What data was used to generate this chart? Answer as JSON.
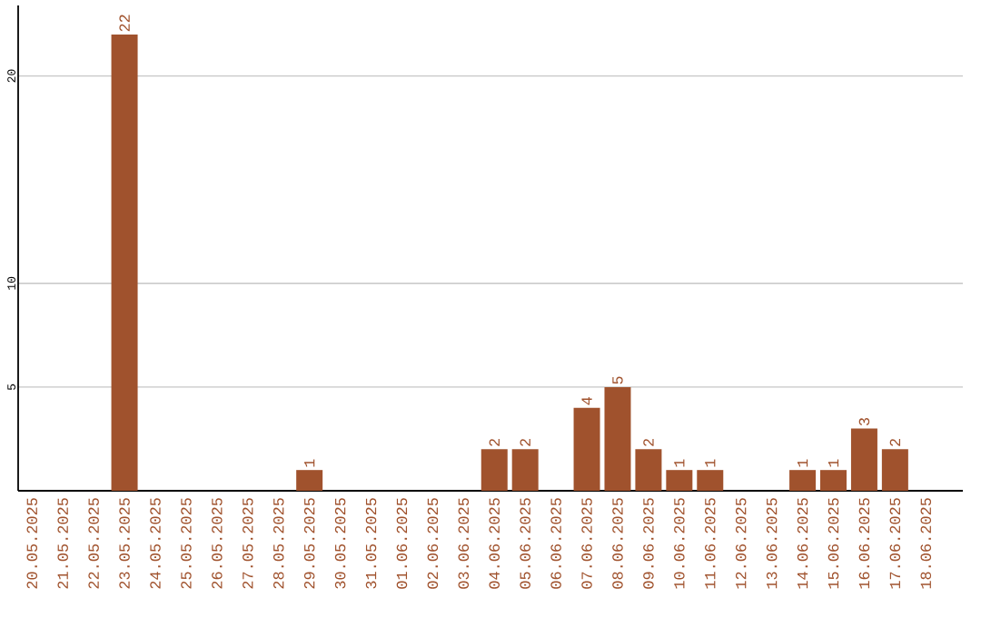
{
  "chart_data": {
    "type": "bar",
    "categories": [
      "20.05.2025",
      "21.05.2025",
      "22.05.2025",
      "23.05.2025",
      "24.05.2025",
      "25.05.2025",
      "26.05.2025",
      "27.05.2025",
      "28.05.2025",
      "29.05.2025",
      "30.05.2025",
      "31.05.2025",
      "01.06.2025",
      "02.06.2025",
      "03.06.2025",
      "04.06.2025",
      "05.06.2025",
      "06.06.2025",
      "07.06.2025",
      "08.06.2025",
      "09.06.2025",
      "10.06.2025",
      "11.06.2025",
      "12.06.2025",
      "13.06.2025",
      "14.06.2025",
      "15.06.2025",
      "16.06.2025",
      "17.06.2025",
      "18.06.2025"
    ],
    "values": [
      0,
      0,
      0,
      22,
      0,
      0,
      0,
      0,
      0,
      1,
      0,
      0,
      0,
      0,
      0,
      2,
      2,
      0,
      4,
      5,
      2,
      1,
      1,
      0,
      0,
      1,
      1,
      3,
      2,
      0
    ],
    "value_labels": [
      null,
      null,
      null,
      "22",
      null,
      null,
      null,
      null,
      null,
      "1",
      null,
      null,
      null,
      null,
      null,
      "2",
      "2",
      null,
      "4",
      "5",
      "2",
      "1",
      "1",
      null,
      null,
      "1",
      "1",
      "3",
      "2",
      null
    ],
    "color": "#a0522d",
    "ylim": [
      0,
      23.4
    ],
    "yticks": [
      5,
      10,
      20
    ],
    "grid": "y"
  }
}
